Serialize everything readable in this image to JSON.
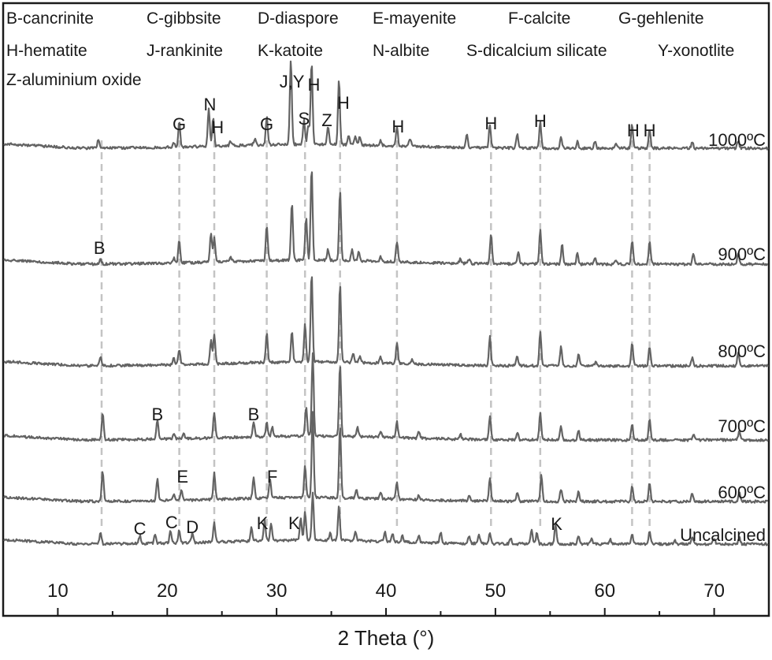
{
  "chart_data": {
    "type": "line",
    "xlabel": "2 Theta (°)",
    "ylabel": "",
    "xlim": [
      5,
      75
    ],
    "x_ticks": [
      10,
      20,
      30,
      40,
      50,
      60,
      70
    ],
    "grid": false,
    "colors": {
      "trace": "#636363",
      "guide": "#c4c4c4",
      "axis": "#1a1a1a"
    },
    "legend": [
      [
        "B-cancrinite",
        "C-gibbsite",
        "D-diaspore",
        "E-mayenite",
        "F-calcite",
        "G-gehlenite"
      ],
      [
        "H-hematite",
        "J-rankinite",
        "K-katoite",
        "N-albite",
        "S-dicalcium silicate",
        "Y-xonotlite"
      ],
      [
        "Z-aluminium oxide"
      ]
    ],
    "reference_lines_2theta": [
      14.0,
      21.1,
      24.3,
      29.1,
      32.6,
      35.8,
      41.0,
      49.6,
      54.1,
      62.5,
      64.1
    ],
    "series": [
      {
        "name": "1000ºC",
        "peaks": [
          [
            13.7,
            10
          ],
          [
            20.6,
            6
          ],
          [
            21.1,
            32
          ],
          [
            23.8,
            48
          ],
          [
            24.2,
            36
          ],
          [
            25.8,
            6
          ],
          [
            28.0,
            8
          ],
          [
            29.1,
            36
          ],
          [
            31.3,
            108
          ],
          [
            32.5,
            30
          ],
          [
            32.9,
            24
          ],
          [
            33.2,
            104
          ],
          [
            34.7,
            24
          ],
          [
            35.7,
            82
          ],
          [
            36.6,
            12
          ],
          [
            37.2,
            12
          ],
          [
            37.6,
            10
          ],
          [
            39.5,
            7
          ],
          [
            41.0,
            24
          ],
          [
            42.2,
            10
          ],
          [
            47.4,
            18
          ],
          [
            49.5,
            30
          ],
          [
            52.0,
            18
          ],
          [
            54.1,
            34
          ],
          [
            56.0,
            14
          ],
          [
            57.5,
            8
          ],
          [
            59.1,
            8
          ],
          [
            61.0,
            6
          ],
          [
            62.5,
            30
          ],
          [
            64.1,
            24
          ],
          [
            68.0,
            8
          ],
          [
            72.2,
            10
          ]
        ]
      },
      {
        "name": "900ºC",
        "peaks": [
          [
            13.9,
            6
          ],
          [
            20.6,
            6
          ],
          [
            21.1,
            28
          ],
          [
            24.0,
            36
          ],
          [
            24.3,
            30
          ],
          [
            25.8,
            6
          ],
          [
            29.1,
            44
          ],
          [
            31.4,
            72
          ],
          [
            32.7,
            54
          ],
          [
            33.2,
            118
          ],
          [
            34.7,
            14
          ],
          [
            35.8,
            90
          ],
          [
            36.9,
            14
          ],
          [
            37.5,
            12
          ],
          [
            39.5,
            6
          ],
          [
            41.0,
            26
          ],
          [
            46.8,
            6
          ],
          [
            47.6,
            6
          ],
          [
            49.6,
            38
          ],
          [
            52.1,
            16
          ],
          [
            54.1,
            44
          ],
          [
            56.1,
            24
          ],
          [
            57.5,
            14
          ],
          [
            59.1,
            8
          ],
          [
            61.0,
            6
          ],
          [
            62.5,
            30
          ],
          [
            64.1,
            28
          ],
          [
            68.1,
            14
          ],
          [
            72.2,
            14
          ]
        ]
      },
      {
        "name": "800ºC",
        "peaks": [
          [
            13.9,
            10
          ],
          [
            20.6,
            8
          ],
          [
            21.1,
            20
          ],
          [
            24.0,
            30
          ],
          [
            24.3,
            38
          ],
          [
            29.1,
            36
          ],
          [
            31.4,
            38
          ],
          [
            32.6,
            48
          ],
          [
            33.2,
            114
          ],
          [
            35.8,
            100
          ],
          [
            37.0,
            12
          ],
          [
            37.6,
            8
          ],
          [
            39.5,
            7
          ],
          [
            41.0,
            26
          ],
          [
            42.4,
            6
          ],
          [
            49.5,
            36
          ],
          [
            52.0,
            12
          ],
          [
            54.1,
            44
          ],
          [
            56.0,
            24
          ],
          [
            57.6,
            14
          ],
          [
            59.2,
            6
          ],
          [
            62.5,
            30
          ],
          [
            64.1,
            24
          ],
          [
            68.0,
            10
          ],
          [
            72.2,
            16
          ]
        ]
      },
      {
        "name": "700ºC",
        "peaks": [
          [
            14.1,
            34
          ],
          [
            19.1,
            26
          ],
          [
            20.6,
            6
          ],
          [
            21.5,
            6
          ],
          [
            24.3,
            32
          ],
          [
            27.9,
            20
          ],
          [
            29.1,
            18
          ],
          [
            29.6,
            12
          ],
          [
            32.7,
            36
          ],
          [
            33.3,
            104
          ],
          [
            35.8,
            92
          ],
          [
            37.4,
            12
          ],
          [
            39.5,
            8
          ],
          [
            41.0,
            20
          ],
          [
            43.0,
            8
          ],
          [
            46.8,
            6
          ],
          [
            49.5,
            30
          ],
          [
            52.0,
            10
          ],
          [
            54.1,
            36
          ],
          [
            56.0,
            18
          ],
          [
            57.6,
            12
          ],
          [
            62.5,
            20
          ],
          [
            64.1,
            26
          ],
          [
            68.1,
            8
          ],
          [
            72.3,
            12
          ]
        ]
      },
      {
        "name": "600ºC",
        "peaks": [
          [
            14.1,
            38
          ],
          [
            19.1,
            28
          ],
          [
            20.6,
            8
          ],
          [
            21.3,
            14
          ],
          [
            24.3,
            34
          ],
          [
            27.9,
            26
          ],
          [
            29.4,
            24
          ],
          [
            32.6,
            40
          ],
          [
            33.3,
            108
          ],
          [
            35.8,
            92
          ],
          [
            37.3,
            12
          ],
          [
            39.5,
            8
          ],
          [
            41.0,
            22
          ],
          [
            43.0,
            6
          ],
          [
            47.6,
            8
          ],
          [
            49.5,
            28
          ],
          [
            52.0,
            12
          ],
          [
            54.2,
            34
          ],
          [
            56.0,
            16
          ],
          [
            57.6,
            12
          ],
          [
            62.5,
            20
          ],
          [
            64.1,
            24
          ],
          [
            68.0,
            10
          ],
          [
            72.3,
            12
          ]
        ]
      },
      {
        "name": "Uncalcined",
        "peaks": [
          [
            13.9,
            14
          ],
          [
            17.5,
            10
          ],
          [
            18.9,
            12
          ],
          [
            20.3,
            16
          ],
          [
            21.1,
            16
          ],
          [
            22.3,
            12
          ],
          [
            24.3,
            24
          ],
          [
            27.7,
            18
          ],
          [
            28.9,
            26
          ],
          [
            29.5,
            22
          ],
          [
            32.2,
            28
          ],
          [
            32.6,
            36
          ],
          [
            33.3,
            60
          ],
          [
            34.9,
            10
          ],
          [
            35.7,
            44
          ],
          [
            37.2,
            10
          ],
          [
            39.9,
            12
          ],
          [
            40.6,
            10
          ],
          [
            41.5,
            8
          ],
          [
            43.0,
            8
          ],
          [
            45.0,
            14
          ],
          [
            47.6,
            10
          ],
          [
            48.5,
            10
          ],
          [
            49.5,
            14
          ],
          [
            51.4,
            8
          ],
          [
            53.3,
            18
          ],
          [
            53.8,
            14
          ],
          [
            55.5,
            24
          ],
          [
            57.6,
            10
          ],
          [
            58.8,
            8
          ],
          [
            60.5,
            6
          ],
          [
            62.5,
            12
          ],
          [
            64.1,
            16
          ],
          [
            66.4,
            6
          ],
          [
            68.0,
            8
          ],
          [
            70.0,
            8
          ],
          [
            72.3,
            8
          ]
        ]
      }
    ],
    "peak_labels": [
      {
        "text": "G",
        "x": 21.1,
        "series": 0,
        "row": 0
      },
      {
        "text": "N",
        "x": 23.9,
        "series": 0,
        "row": 1
      },
      {
        "text": "H",
        "x": 24.6,
        "series": 0,
        "row": 0
      },
      {
        "text": "G",
        "x": 29.1,
        "series": 0,
        "row": 0
      },
      {
        "text": "J,Y",
        "x": 31.4,
        "series": 0,
        "row": 2
      },
      {
        "text": "S",
        "x": 32.5,
        "series": 0,
        "row": 0
      },
      {
        "text": "H",
        "x": 33.4,
        "series": 0,
        "row": 2
      },
      {
        "text": "Z",
        "x": 34.6,
        "series": 0,
        "row": 0
      },
      {
        "text": "H",
        "x": 36.1,
        "series": 0,
        "row": 1
      },
      {
        "text": "H",
        "x": 41.1,
        "series": 0,
        "row": 0
      },
      {
        "text": "H",
        "x": 49.6,
        "series": 0,
        "row": 0
      },
      {
        "text": "H",
        "x": 54.1,
        "series": 0,
        "row": 0
      },
      {
        "text": "H",
        "x": 62.6,
        "series": 0,
        "row": 0
      },
      {
        "text": "H",
        "x": 64.1,
        "series": 0,
        "row": 0
      },
      {
        "text": "B",
        "x": 13.8,
        "series": 1,
        "row": 0
      },
      {
        "text": "B",
        "x": 19.1,
        "series": 3,
        "row": 0
      },
      {
        "text": "B",
        "x": 27.9,
        "series": 3,
        "row": 0
      },
      {
        "text": "E",
        "x": 21.4,
        "series": 4,
        "row": 0
      },
      {
        "text": "F",
        "x": 29.6,
        "series": 4,
        "row": 0
      },
      {
        "text": "C",
        "x": 17.5,
        "series": 5,
        "row": 0
      },
      {
        "text": "C",
        "x": 20.4,
        "series": 5,
        "row": 0
      },
      {
        "text": "D",
        "x": 22.3,
        "series": 5,
        "row": 0
      },
      {
        "text": "K",
        "x": 28.7,
        "series": 5,
        "row": 0
      },
      {
        "text": "K",
        "x": 31.6,
        "series": 5,
        "row": 0
      },
      {
        "text": "K",
        "x": 55.6,
        "series": 5,
        "row": 0
      }
    ]
  }
}
